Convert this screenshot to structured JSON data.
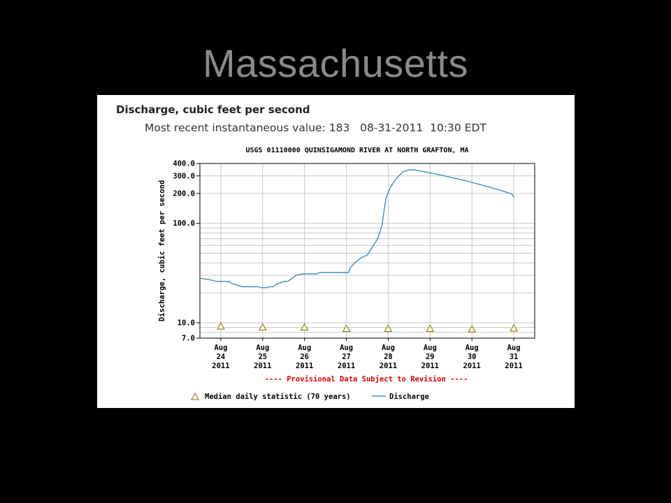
{
  "slide": {
    "title": "Massachusetts"
  },
  "header": {
    "title": "Discharge, cubic feet per second",
    "recent_label": "Most recent instantaneous value:",
    "recent_value": "183",
    "recent_date": "08-31-2011",
    "recent_time": "10:30 EDT"
  },
  "colors": {
    "series": "#1f7fb8",
    "median": "#b8a000",
    "provisional": "#dd0000",
    "grid": "#c8c8c8"
  },
  "chart_data": {
    "type": "line",
    "title": "USGS 01110000 QUINSIGAMOND RIVER AT NORTH GRAFTON, MA",
    "ylabel": "Discharge, cubic feet per second",
    "yscale": "log",
    "ylim": [
      7,
      400
    ],
    "yticks": [
      {
        "value": 7,
        "label": "7.0"
      },
      {
        "value": 10,
        "label": "10.0"
      },
      {
        "value": 100,
        "label": "100.0"
      },
      {
        "value": 200,
        "label": "200.0"
      },
      {
        "value": 300,
        "label": "300.0"
      },
      {
        "value": 400,
        "label": "400.0"
      }
    ],
    "xlim": [
      -0.5,
      7.5
    ],
    "xticks": [
      {
        "x": 0,
        "label": [
          "Aug",
          "24",
          "2011"
        ]
      },
      {
        "x": 1,
        "label": [
          "Aug",
          "25",
          "2011"
        ]
      },
      {
        "x": 2,
        "label": [
          "Aug",
          "26",
          "2011"
        ]
      },
      {
        "x": 3,
        "label": [
          "Aug",
          "27",
          "2011"
        ]
      },
      {
        "x": 4,
        "label": [
          "Aug",
          "28",
          "2011"
        ]
      },
      {
        "x": 5,
        "label": [
          "Aug",
          "29",
          "2011"
        ]
      },
      {
        "x": 6,
        "label": [
          "Aug",
          "30",
          "2011"
        ]
      },
      {
        "x": 7,
        "label": [
          "Aug",
          "31",
          "2011"
        ]
      }
    ],
    "grid": true,
    "provisional_note": "---- Provisional Data Subject to Revision ----",
    "legend": {
      "position": "bottom",
      "median_label": "Median daily statistic (70 years)",
      "series_label": "Discharge"
    },
    "series": [
      {
        "name": "Discharge",
        "points": [
          [
            -0.5,
            28
          ],
          [
            -0.25,
            27
          ],
          [
            -0.1,
            26
          ],
          [
            0.2,
            26
          ],
          [
            0.25,
            25
          ],
          [
            0.5,
            23
          ],
          [
            0.9,
            23
          ],
          [
            0.95,
            22.5
          ],
          [
            1.1,
            22.5
          ],
          [
            1.15,
            23
          ],
          [
            1.25,
            23
          ],
          [
            1.3,
            24
          ],
          [
            1.5,
            26
          ],
          [
            1.6,
            26
          ],
          [
            1.8,
            30
          ],
          [
            1.95,
            31
          ],
          [
            2.1,
            31
          ],
          [
            2.3,
            31
          ],
          [
            2.35,
            32
          ],
          [
            2.7,
            32
          ],
          [
            3.0,
            32
          ],
          [
            3.05,
            32
          ],
          [
            3.1,
            36
          ],
          [
            3.2,
            40
          ],
          [
            3.35,
            45
          ],
          [
            3.5,
            48
          ],
          [
            3.6,
            56
          ],
          [
            3.75,
            70
          ],
          [
            3.85,
            95
          ],
          [
            3.9,
            135
          ],
          [
            3.95,
            180
          ],
          [
            4.05,
            230
          ],
          [
            4.2,
            285
          ],
          [
            4.35,
            330
          ],
          [
            4.5,
            345
          ],
          [
            4.65,
            345
          ],
          [
            4.85,
            330
          ],
          [
            5.15,
            313
          ],
          [
            5.5,
            290
          ],
          [
            5.85,
            268
          ],
          [
            6.2,
            245
          ],
          [
            6.6,
            220
          ],
          [
            6.95,
            198
          ],
          [
            7.0,
            183
          ]
        ]
      }
    ],
    "median": [
      {
        "x": 0,
        "y": 9.2
      },
      {
        "x": 1,
        "y": 9.0
      },
      {
        "x": 2,
        "y": 9.0
      },
      {
        "x": 3,
        "y": 8.7
      },
      {
        "x": 4,
        "y": 8.7
      },
      {
        "x": 5,
        "y": 8.7
      },
      {
        "x": 6,
        "y": 8.6
      },
      {
        "x": 7,
        "y": 8.8
      }
    ]
  }
}
